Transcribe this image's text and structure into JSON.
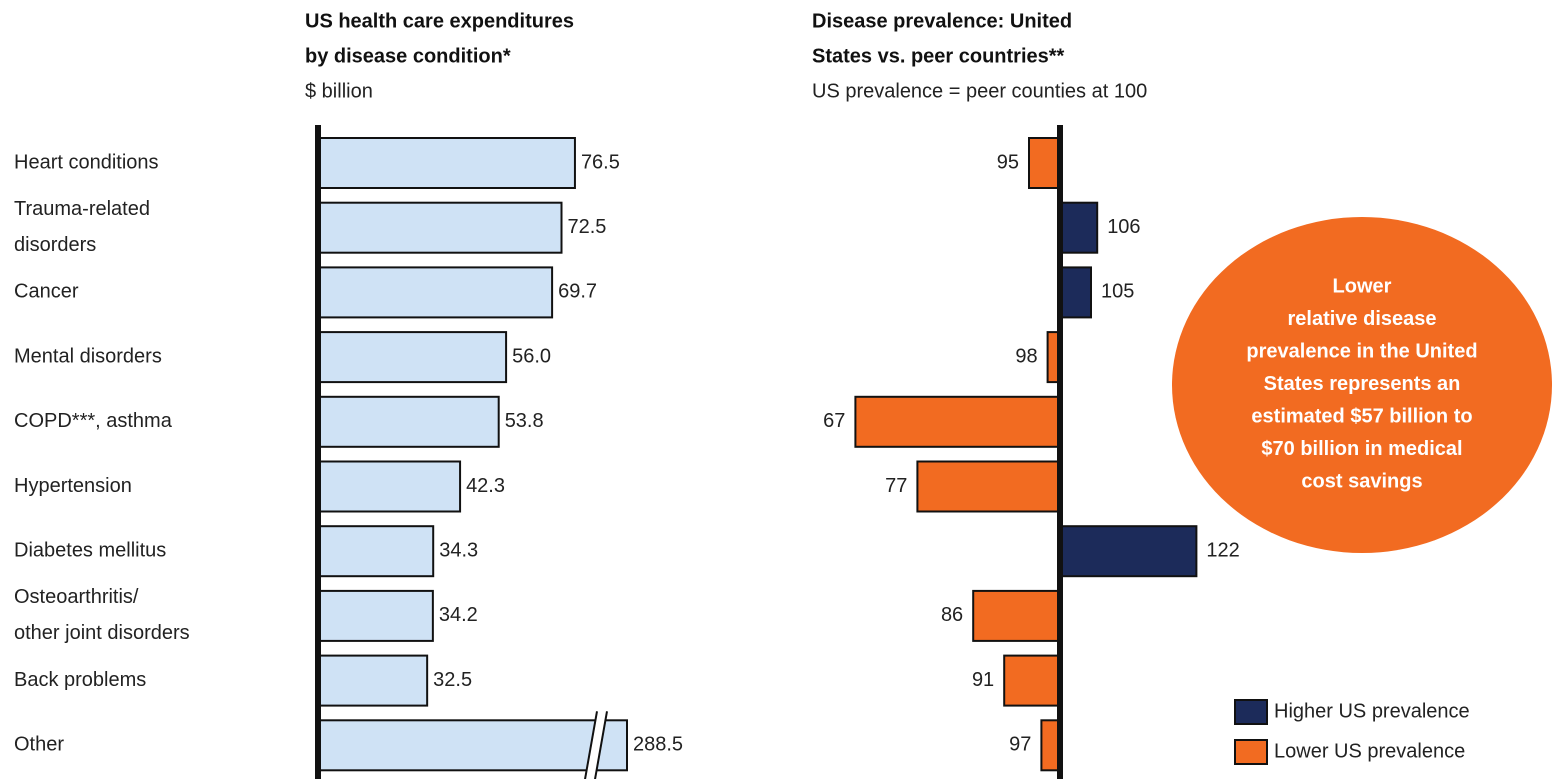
{
  "chart_data": [
    {
      "type": "bar",
      "orientation": "horizontal",
      "title": [
        "US health care expenditures",
        "by disease condition*"
      ],
      "subtitle": "$ billion",
      "categories": [
        [
          "Heart conditions"
        ],
        [
          "Trauma-related",
          "disorders"
        ],
        [
          "Cancer"
        ],
        [
          "Mental disorders"
        ],
        [
          "COPD***, asthma"
        ],
        [
          "Hypertension"
        ],
        [
          "Diabetes mellitus"
        ],
        [
          "Osteoarthritis/",
          "other joint disorders"
        ],
        [
          "Back problems"
        ],
        [
          "Other"
        ]
      ],
      "values": [
        76.5,
        72.5,
        69.7,
        56.0,
        53.8,
        42.3,
        34.3,
        34.2,
        32.5,
        288.5
      ],
      "value_labels": [
        "76.5",
        "72.5",
        "69.7",
        "56.0",
        "53.8",
        "42.3",
        "34.3",
        "34.2",
        "32.5",
        "288.5"
      ],
      "color": "#cfe2f5",
      "xlim": [
        0,
        92
      ],
      "axis_break": true
    },
    {
      "type": "diverging_bar",
      "orientation": "horizontal",
      "title": [
        "Disease prevalence: United",
        "States vs. peer countries**"
      ],
      "subtitle": "US prevalence = peer counties at 100",
      "values": [
        95,
        106,
        105,
        98,
        67,
        77,
        122,
        86,
        91,
        97
      ],
      "baseline": 100,
      "xlim": [
        60,
        130
      ],
      "legend": [
        {
          "label": "Higher US prevalence",
          "color": "#1c2b5a"
        },
        {
          "label": "Lower US prevalence",
          "color": "#f26b21"
        }
      ],
      "legend_position": "lower right",
      "annotation": [
        "Lower",
        "relative disease",
        "prevalence in the United",
        "States represents an",
        "estimated $57 billion to",
        "$70 billion in medical",
        "cost savings"
      ],
      "annotation_color": "#f26b21"
    }
  ]
}
